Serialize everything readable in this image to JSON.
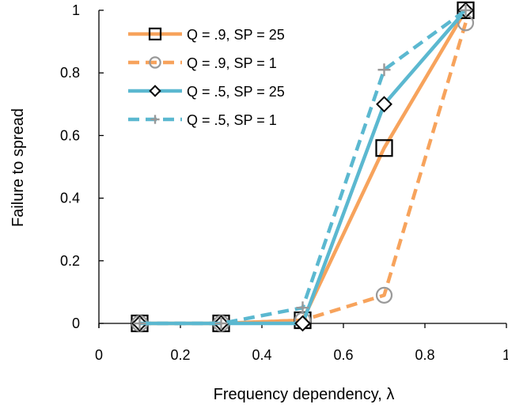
{
  "chart_data": {
    "type": "line",
    "xlabel": "Frequency dependency, λ",
    "ylabel": "Failure to spread",
    "xlim": [
      0,
      1
    ],
    "ylim": [
      0,
      1
    ],
    "x_ticks": [
      "0",
      "0.2",
      "0.4",
      "0.6",
      "0.8",
      "1"
    ],
    "y_ticks": [
      "0",
      "0.2",
      "0.4",
      "0.6",
      "0.8",
      "1"
    ],
    "grid": false,
    "legend_position": "top-left",
    "x": [
      0.1,
      0.3,
      0.5,
      0.7,
      0.9
    ],
    "series": [
      {
        "name": "Q = .9, SP = 25",
        "values": [
          0.0,
          0.0,
          0.01,
          0.56,
          1.0
        ],
        "color": "#F7A35C",
        "dashed": false,
        "marker": "square",
        "marker_color": "#000000"
      },
      {
        "name": "Q = .9, SP = 1",
        "values": [
          0.0,
          0.0,
          0.01,
          0.09,
          0.96
        ],
        "color": "#F7A35C",
        "dashed": true,
        "marker": "circle",
        "marker_color": "#999999"
      },
      {
        "name": "Q = .5, SP = 25",
        "values": [
          0.0,
          0.0,
          0.0,
          0.7,
          1.0
        ],
        "color": "#5BB8D0",
        "dashed": false,
        "marker": "diamond",
        "marker_color": "#000000"
      },
      {
        "name": "Q = .5, SP = 1",
        "values": [
          0.0,
          0.0,
          0.05,
          0.81,
          1.0
        ],
        "color": "#5BB8D0",
        "dashed": true,
        "marker": "plus",
        "marker_color": "#999999"
      }
    ]
  }
}
